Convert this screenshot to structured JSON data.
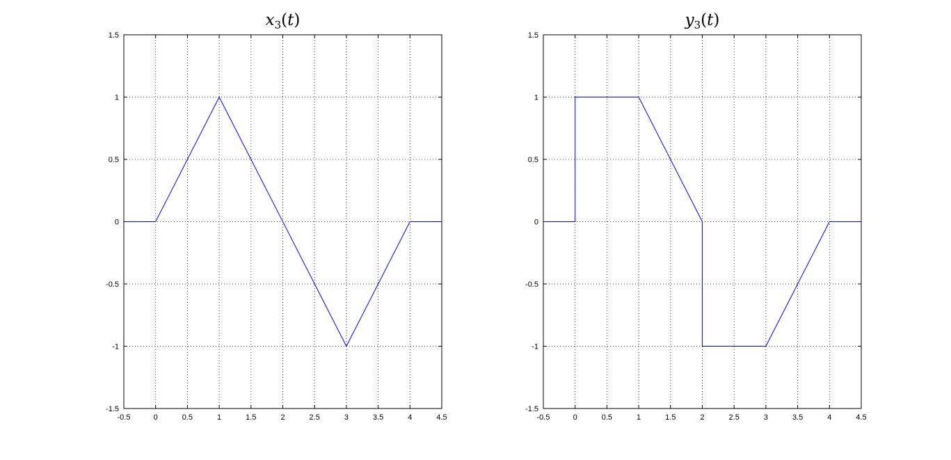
{
  "chart_data": [
    {
      "type": "line",
      "title": {
        "base": "x",
        "sub": "3",
        "arg": "t"
      },
      "xlabel": "",
      "ylabel": "",
      "xlim": [
        -0.5,
        4.5
      ],
      "ylim": [
        -1.5,
        1.5
      ],
      "xticks": [
        "-0.5",
        "0",
        "0.5",
        "1",
        "1.5",
        "2",
        "2.5",
        "3",
        "3.5",
        "4",
        "4.5"
      ],
      "yticks": [
        "-1.5",
        "-1",
        "-0.5",
        "0",
        "0.5",
        "1",
        "1.5"
      ],
      "grid": true,
      "series": [
        {
          "color": "#0000ff",
          "x": [
            -0.5,
            0,
            1,
            3,
            4,
            4.5
          ],
          "y": [
            0,
            0,
            1,
            -1,
            0,
            0
          ]
        }
      ]
    },
    {
      "type": "line",
      "title": {
        "base": "y",
        "sub": "3",
        "arg": "t"
      },
      "xlabel": "",
      "ylabel": "",
      "xlim": [
        -0.5,
        4.5
      ],
      "ylim": [
        -1.5,
        1.5
      ],
      "xticks": [
        "-0.5",
        "0",
        "0.5",
        "1",
        "1.5",
        "2",
        "2.5",
        "3",
        "3.5",
        "4",
        "4.5"
      ],
      "yticks": [
        "-1.5",
        "-1",
        "-0.5",
        "0",
        "0.5",
        "1",
        "1.5"
      ],
      "grid": true,
      "series": [
        {
          "color": "#0000ff",
          "x": [
            -0.5,
            0,
            0,
            1,
            2,
            2,
            3,
            4,
            4.5
          ],
          "y": [
            0,
            0,
            1,
            1,
            0,
            -1,
            -1,
            0,
            0
          ]
        }
      ]
    }
  ]
}
